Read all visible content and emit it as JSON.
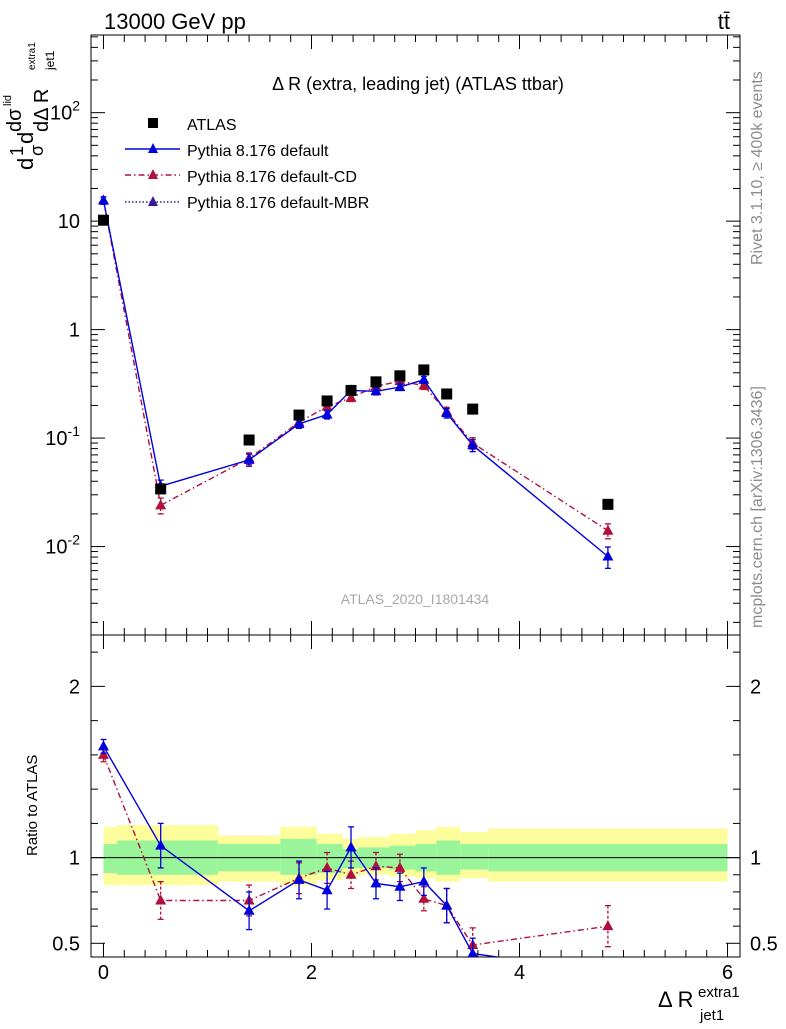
{
  "header": {
    "energy_label": "13000 GeV pp",
    "process_label": "tt̄"
  },
  "side_labels": {
    "rivet": "Rivet 3.1.10, ≥ 400k events",
    "mcplots": "mcplots.cern.ch [arXiv:1306.3436]"
  },
  "chart_data": [
    {
      "type": "scatter",
      "title": "Δ R (extra, leading jet) (ATLAS ttbar)",
      "watermark": "ATLAS_2020_I1801434",
      "ylabel": {
        "main": "dσ^{lid}",
        "frac": "1/σ dσ/dΔR^{extra1}_{jet1}"
      },
      "ylabel_parts": [
        "d",
        "1",
        "σ",
        "d",
        "dσ",
        "lid",
        "dΔ R",
        "jet1",
        "extra1"
      ],
      "yscale": "log",
      "xlim": [
        -0.12,
        6.12
      ],
      "ylim": [
        0.00153,
        520
      ],
      "y_ticks": [
        {
          "v": 0.01,
          "label": "10",
          "exp": "-2"
        },
        {
          "v": 0.1,
          "label": "10",
          "exp": "-1"
        },
        {
          "v": 1,
          "label": "1",
          "exp": ""
        },
        {
          "v": 10,
          "label": "10",
          "exp": ""
        },
        {
          "v": 100,
          "label": "10",
          "exp": "2"
        }
      ],
      "legend_position": "top-left",
      "series": [
        {
          "name": "ATLAS",
          "style": "data",
          "color": "#000000",
          "x": [
            0.0,
            0.55,
            1.4,
            1.88,
            2.15,
            2.38,
            2.62,
            2.85,
            3.08,
            3.3,
            3.55,
            4.85
          ],
          "y": [
            10.2,
            0.034,
            0.096,
            0.163,
            0.22,
            0.275,
            0.33,
            0.375,
            0.425,
            0.255,
            0.185,
            0.0245
          ]
        },
        {
          "name": "Pythia 8.176 default",
          "style": "solid",
          "color": "#0000dd",
          "x": [
            0.0,
            0.55,
            1.4,
            1.88,
            2.15,
            2.38,
            2.62,
            2.85,
            3.08,
            3.3,
            3.55,
            4.85
          ],
          "y": [
            15.5,
            0.036,
            0.063,
            0.135,
            0.165,
            0.275,
            0.27,
            0.295,
            0.345,
            0.17,
            0.086,
            0.0081
          ],
          "err": [
            1.2,
            0.005,
            0.008,
            0.012,
            0.015,
            0.02,
            0.02,
            0.02,
            0.025,
            0.017,
            0.011,
            0.0018
          ]
        },
        {
          "name": "Pythia 8.176 default-CD",
          "style": "dashdot",
          "color": "#b0103a",
          "x": [
            0.0,
            0.55,
            1.4,
            1.88,
            2.15,
            2.38,
            2.62,
            2.85,
            3.08,
            3.3,
            3.55,
            4.85
          ],
          "y": [
            15.5,
            0.024,
            0.065,
            0.14,
            0.195,
            0.235,
            0.3,
            0.335,
            0.305,
            0.175,
            0.09,
            0.014
          ],
          "err": [
            1.2,
            0.004,
            0.008,
            0.012,
            0.017,
            0.018,
            0.022,
            0.024,
            0.024,
            0.017,
            0.011,
            0.0022
          ]
        },
        {
          "name": "Pythia 8.176 default-MBR",
          "style": "dotted",
          "color": "#3a1a9a",
          "x": [],
          "y": []
        }
      ]
    },
    {
      "type": "scatter",
      "ylabel": "Ratio to ATLAS",
      "xlabel": {
        "main": "Δ R",
        "sup": "extra1",
        "sub": "jet1"
      },
      "xlim": [
        -0.12,
        6.12
      ],
      "ylim": [
        0.42,
        2.3
      ],
      "x_ticks": [
        0,
        2,
        4,
        6
      ],
      "y_ticks": [
        0.5,
        1,
        2
      ],
      "bands": {
        "edges": [
          0,
          0.13,
          1.1,
          1.7,
          2.05,
          2.3,
          2.45,
          2.75,
          3.0,
          3.2,
          3.43,
          3.7,
          6.0
        ],
        "inner": [
          [
            0.91,
            1.08
          ],
          [
            0.9,
            1.1
          ],
          [
            0.92,
            1.08
          ],
          [
            0.9,
            1.11
          ],
          [
            0.91,
            1.08
          ],
          [
            0.94,
            1.05
          ],
          [
            0.94,
            1.06
          ],
          [
            0.93,
            1.07
          ],
          [
            0.92,
            1.08
          ],
          [
            0.9,
            1.1
          ],
          [
            0.93,
            1.08
          ],
          [
            0.92,
            1.08
          ]
        ],
        "outer": [
          [
            0.84,
            1.18
          ],
          [
            0.84,
            1.19
          ],
          [
            0.86,
            1.13
          ],
          [
            0.84,
            1.18
          ],
          [
            0.87,
            1.14
          ],
          [
            0.89,
            1.11
          ],
          [
            0.9,
            1.12
          ],
          [
            0.89,
            1.14
          ],
          [
            0.88,
            1.16
          ],
          [
            0.86,
            1.18
          ],
          [
            0.88,
            1.15
          ],
          [
            0.86,
            1.17
          ]
        ]
      },
      "series": [
        {
          "name": "Pythia 8.176 default",
          "style": "solid",
          "color": "#0000dd",
          "x": [
            0.0,
            0.55,
            1.4,
            1.88,
            2.15,
            2.38,
            2.62,
            2.85,
            3.08,
            3.3,
            3.55,
            4.85
          ],
          "y": [
            1.65,
            1.07,
            0.69,
            0.87,
            0.81,
            1.06,
            0.85,
            0.83,
            0.86,
            0.72,
            0.44,
            0.33
          ],
          "err": [
            0.04,
            0.13,
            0.11,
            0.11,
            0.11,
            0.12,
            0.09,
            0.08,
            0.08,
            0.1,
            0.09,
            0.07
          ]
        },
        {
          "name": "Pythia 8.176 default-CD",
          "style": "dashdot",
          "color": "#b0103a",
          "x": [
            0.0,
            0.55,
            1.4,
            1.88,
            2.15,
            2.38,
            2.62,
            2.85,
            3.08,
            3.3,
            3.55,
            4.85
          ],
          "y": [
            1.6,
            0.75,
            0.75,
            0.88,
            0.94,
            0.9,
            0.95,
            0.94,
            0.76,
            0.72,
            0.49,
            0.6
          ],
          "err": [
            0.04,
            0.11,
            0.09,
            0.09,
            0.09,
            0.08,
            0.08,
            0.08,
            0.07,
            0.1,
            0.1,
            0.12
          ]
        }
      ]
    }
  ]
}
